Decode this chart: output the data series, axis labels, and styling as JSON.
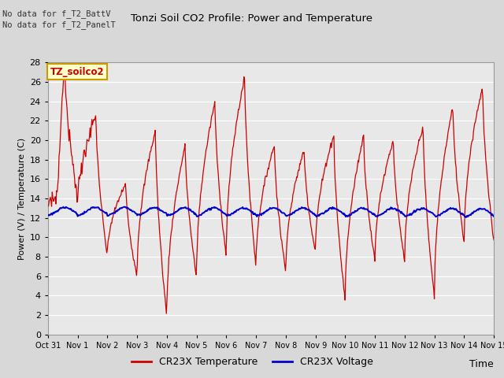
{
  "title": "Tonzi Soil CO2 Profile: Power and Temperature",
  "ylabel": "Power (V) / Temperature (C)",
  "xlabel": "Time",
  "no_data_text1": "No data for f_T2_BattV",
  "no_data_text2": "No data for f_T2_PanelT",
  "annotation_box": "TZ_soilco2",
  "ylim": [
    0,
    28
  ],
  "legend_labels": [
    "CR23X Temperature",
    "CR23X Voltage"
  ],
  "legend_colors": [
    "#cc0000",
    "#0000cc"
  ],
  "x_tick_labels": [
    "Oct 31",
    "Nov 1",
    "Nov 2",
    "Nov 3",
    "Nov 4",
    "Nov 5",
    "Nov 6",
    "Nov 7",
    "Nov 8",
    "Nov 9",
    "Nov 10",
    "Nov 11",
    "Nov 12",
    "Nov 13",
    "Nov 14",
    "Nov 15"
  ],
  "bg_color": "#d8d8d8",
  "plot_bg_color": "#e8e8e8",
  "grid_color": "#ffffff",
  "temp_color": "#cc0000",
  "volt_color": "#0000cc",
  "temp_peaks": [
    27.5,
    22.5,
    15.5,
    21.0,
    19.5,
    24.0,
    26.5,
    19.5,
    19.0,
    20.5,
    20.5,
    20.0,
    21.5,
    23.5,
    25.5
  ],
  "temp_troughs": [
    13.0,
    13.0,
    8.0,
    6.0,
    1.8,
    5.8,
    8.0,
    7.0,
    6.5,
    8.5,
    3.5,
    7.5,
    7.5,
    3.8,
    9.5
  ],
  "volt_base": 12.2,
  "volt_amplitude": 0.9
}
